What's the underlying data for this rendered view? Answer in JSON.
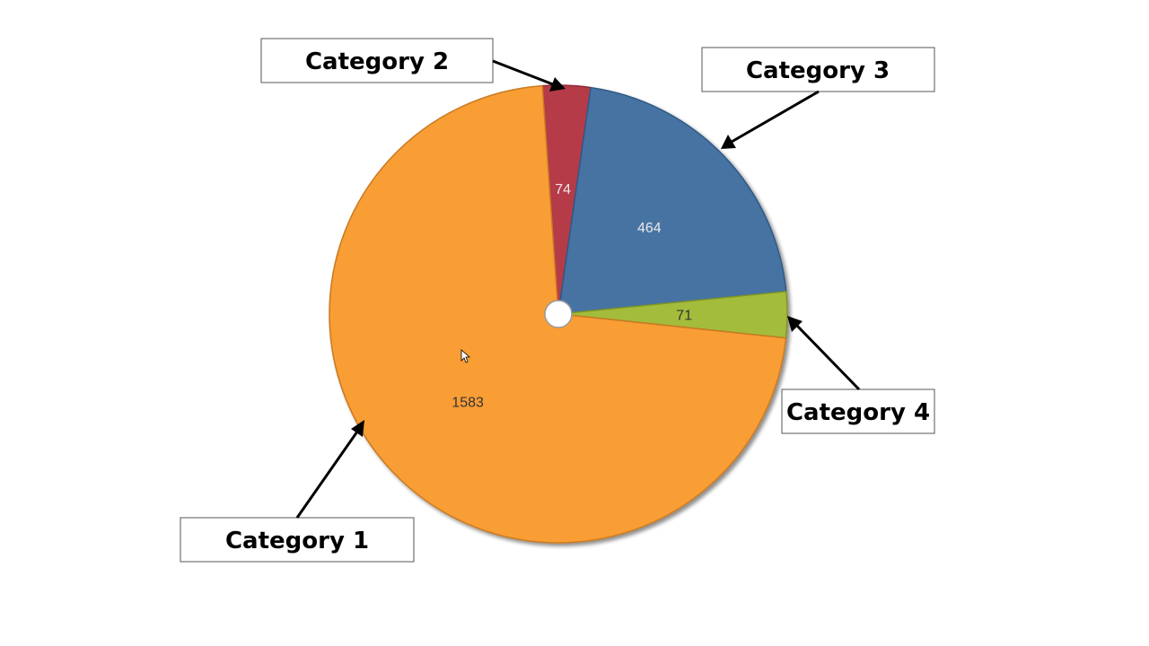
{
  "chart_data": {
    "type": "pie",
    "categories": [
      "Category 1",
      "Category 2",
      "Category 3",
      "Category 4"
    ],
    "values": [
      1583,
      74,
      464,
      71
    ],
    "colors": [
      "#f99d36",
      "#b53a4a",
      "#4673a3",
      "#a3bc3a"
    ],
    "value_label_colors": [
      "#333333",
      "#e8e8e8",
      "#e8e8e8",
      "#333333"
    ],
    "title": "",
    "legend": "callouts"
  }
}
